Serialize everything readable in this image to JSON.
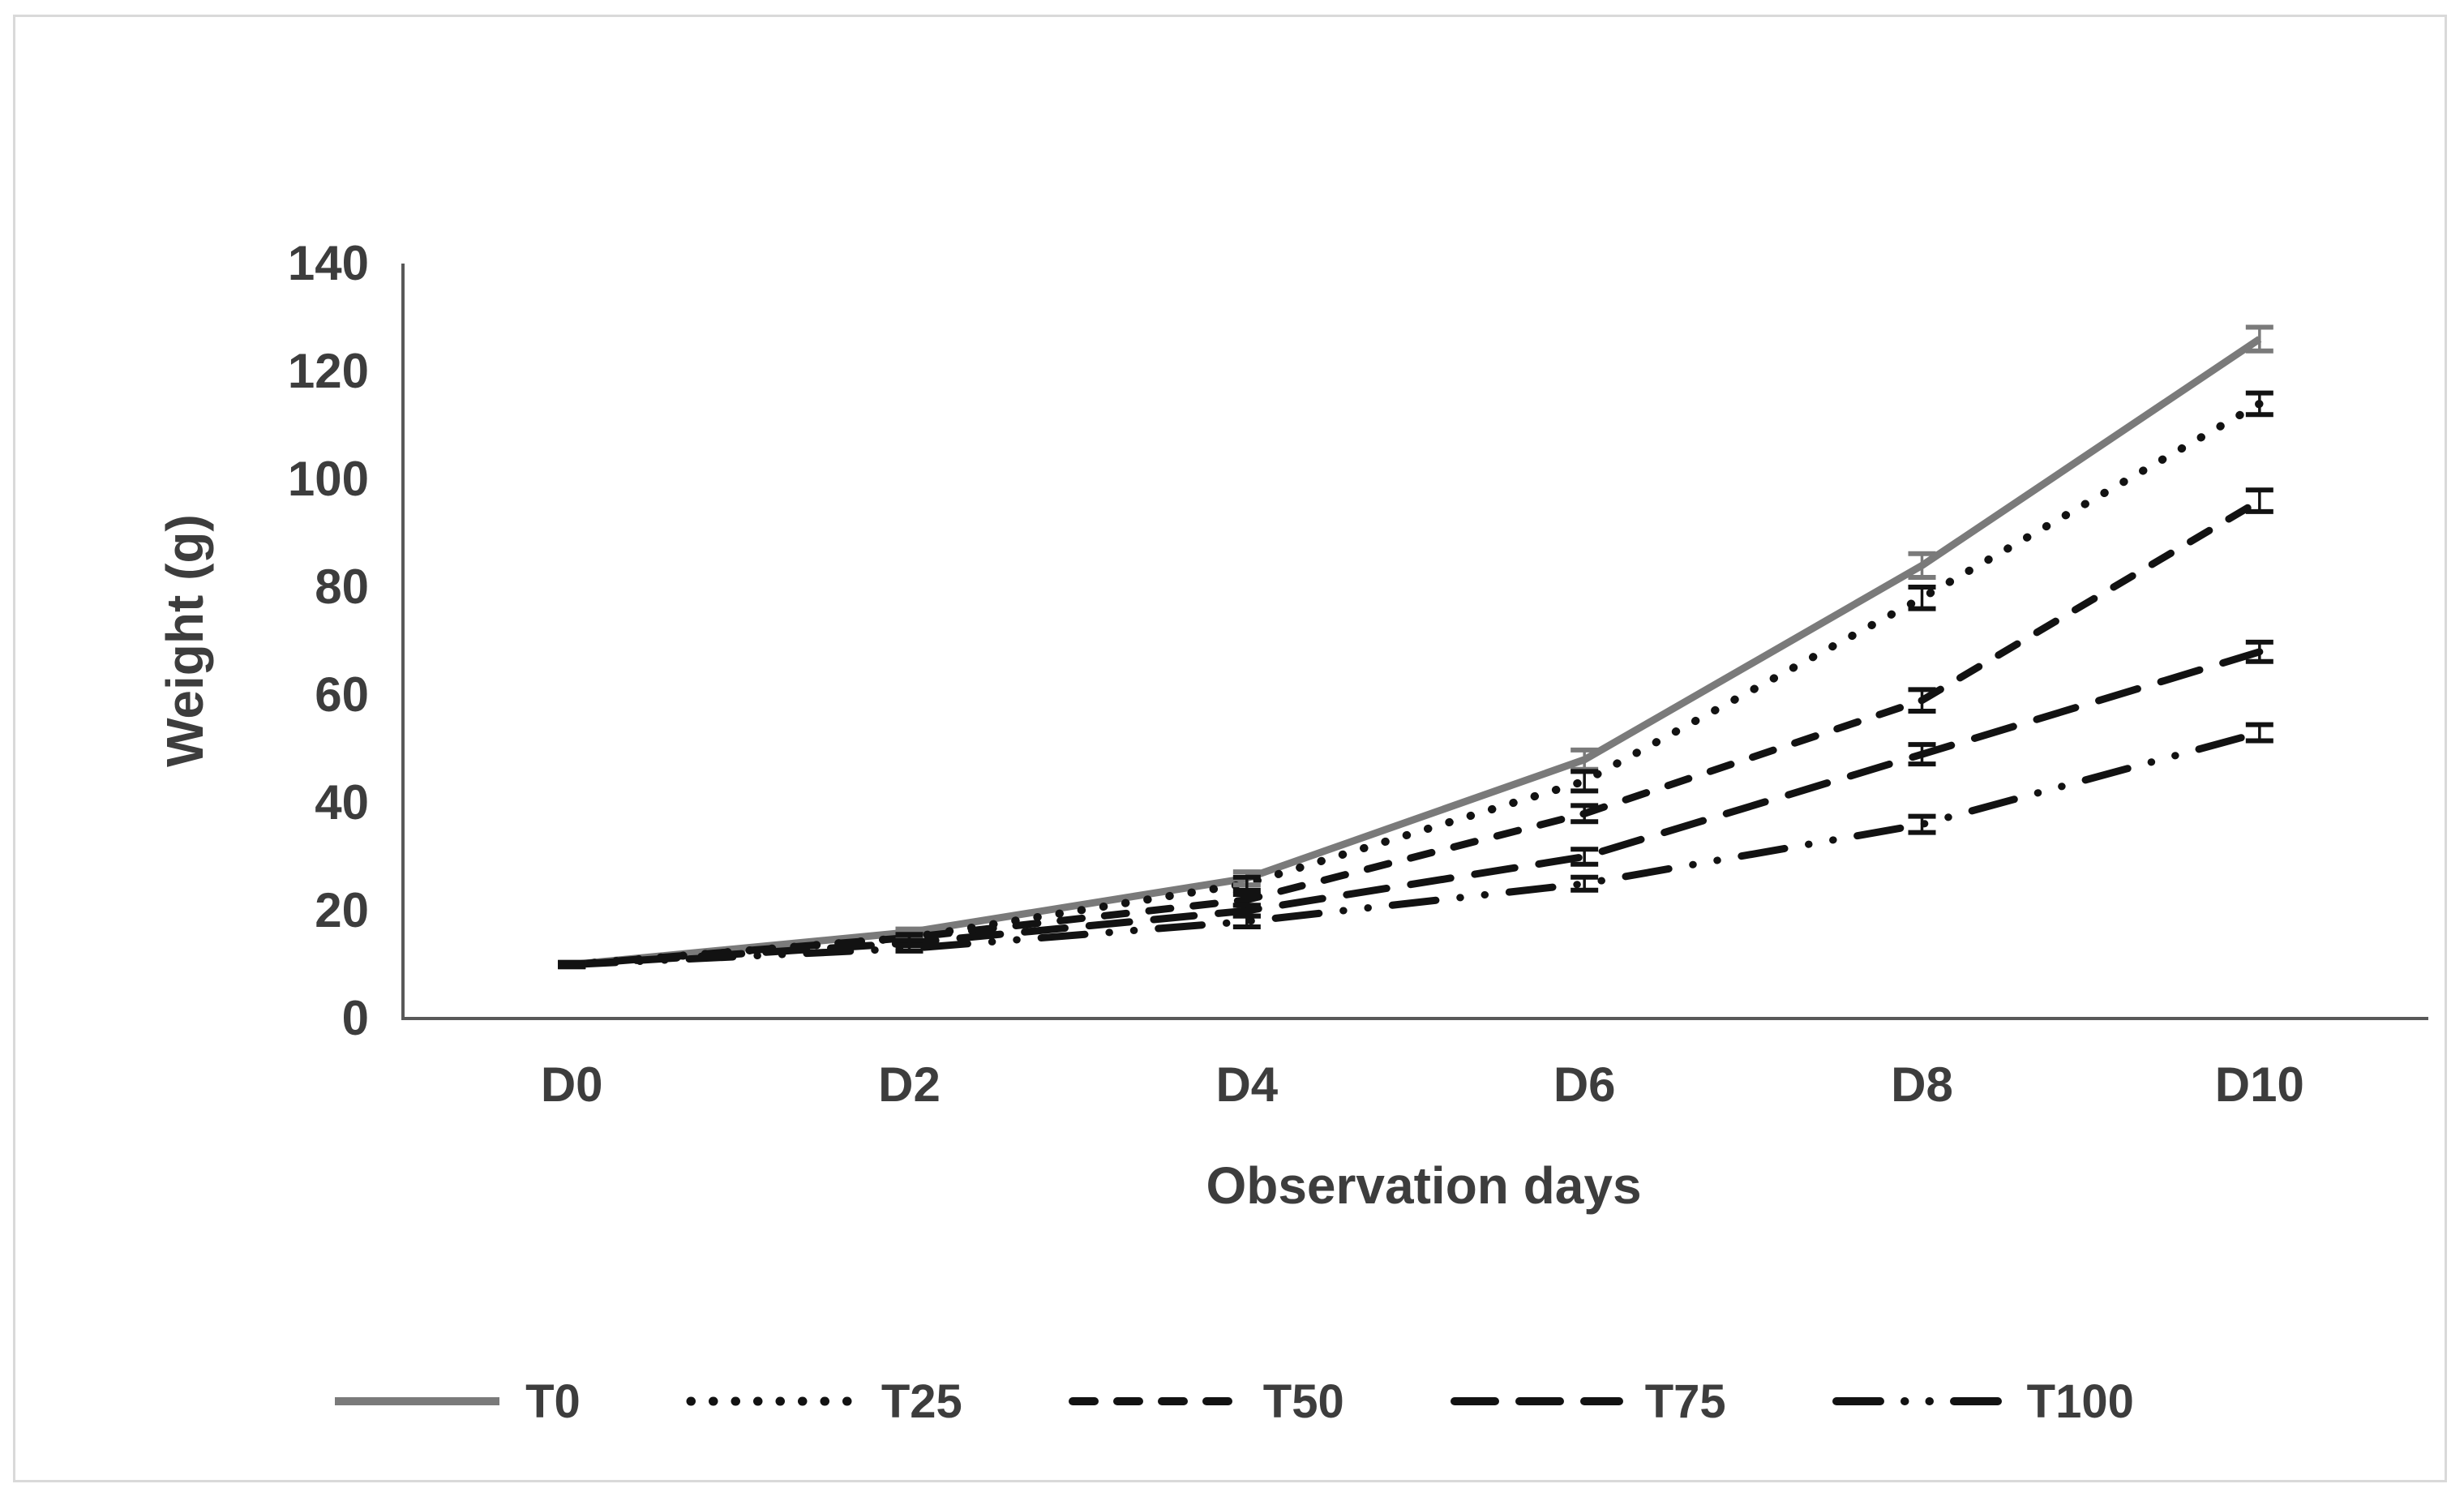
{
  "figure": {
    "background_color": "#ffffff",
    "border_color": "#d9d9d9"
  },
  "axis_style": {
    "line_color": "#595959",
    "tick_text_color": "#3d3d3d"
  },
  "chart_data": {
    "type": "line",
    "title": "",
    "categories": [
      "D0",
      "D2",
      "D4",
      "D6",
      "D8",
      "D10"
    ],
    "series": [
      {
        "name": "T0",
        "values": [
          10,
          16,
          26,
          48,
          84,
          126
        ],
        "errors": [
          0.4,
          0.6,
          1.2,
          1.8,
          2.2,
          2.2
        ],
        "color": "#7a7a7a",
        "dash": "solid"
      },
      {
        "name": "T25",
        "values": [
          10,
          15,
          25,
          44,
          78,
          114
        ],
        "errors": [
          0.4,
          0.6,
          1.2,
          1.8,
          2.0,
          2.0
        ],
        "color": "#121212",
        "dash": "dot"
      },
      {
        "name": "T50",
        "values": [
          10,
          15,
          22,
          38,
          59,
          96
        ],
        "errors": [
          0.4,
          0.5,
          1.0,
          1.5,
          2.0,
          2.0
        ],
        "color": "#121212",
        "dash": "dash"
      },
      {
        "name": "T75",
        "values": [
          10,
          14,
          20,
          30,
          49,
          68
        ],
        "errors": [
          0.4,
          0.5,
          1.0,
          1.4,
          1.8,
          1.8
        ],
        "color": "#121212",
        "dash": "long-dash"
      },
      {
        "name": "T100",
        "values": [
          10,
          13,
          18,
          25,
          36,
          53
        ],
        "errors": [
          0.3,
          0.5,
          1.0,
          1.2,
          1.5,
          1.5
        ],
        "color": "#121212",
        "dash": "long-dash-dot-dot"
      }
    ],
    "xlabel": "Observation days",
    "ylabel": "Weight (g)",
    "ylim": [
      0,
      140
    ],
    "yticks": [
      0,
      20,
      40,
      60,
      80,
      100,
      120,
      140
    ],
    "grid": false,
    "legend_position": "bottom",
    "error_bars": true
  }
}
